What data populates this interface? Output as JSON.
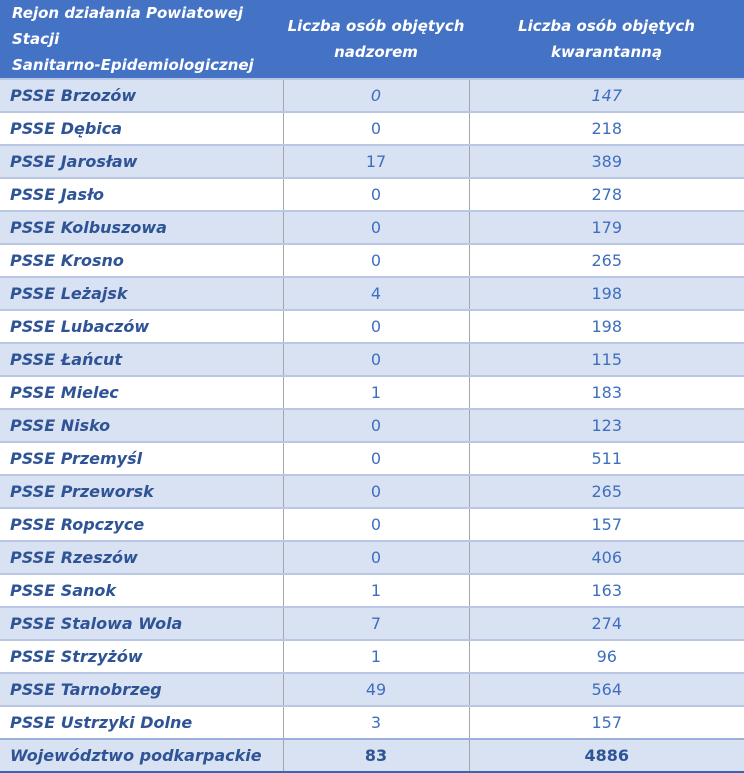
{
  "table": {
    "header": {
      "col1": {
        "line1": "Rejon działania Powiatowej Stacji",
        "line2": "Sanitarno-Epidemiologicznej"
      },
      "col2": {
        "line1": "Liczba osób objętych",
        "line2": "nadzorem"
      },
      "col3": {
        "line1": "Liczba osób objętych",
        "line2": "kwarantanną"
      }
    },
    "rows": [
      {
        "region": "PSSE Brzozów",
        "supervision": "0",
        "quarantine": "147",
        "italic_values": true
      },
      {
        "region": "PSSE Dębica",
        "supervision": "0",
        "quarantine": "218"
      },
      {
        "region": "PSSE Jarosław",
        "supervision": "17",
        "quarantine": "389"
      },
      {
        "region": "PSSE Jasło",
        "supervision": "0",
        "quarantine": "278"
      },
      {
        "region": "PSSE Kolbuszowa",
        "supervision": "0",
        "quarantine": "179"
      },
      {
        "region": "PSSE Krosno",
        "supervision": "0",
        "quarantine": "265"
      },
      {
        "region": "PSSE Leżajsk",
        "supervision": "4",
        "quarantine": "198"
      },
      {
        "region": "PSSE Lubaczów",
        "supervision": "0",
        "quarantine": "198"
      },
      {
        "region": "PSSE Łańcut",
        "supervision": "0",
        "quarantine": "115"
      },
      {
        "region": "PSSE Mielec",
        "supervision": "1",
        "quarantine": "183"
      },
      {
        "region": "PSSE Nisko",
        "supervision": "0",
        "quarantine": "123"
      },
      {
        "region": "PSSE Przemyśl",
        "supervision": "0",
        "quarantine": "511"
      },
      {
        "region": "PSSE Przeworsk",
        "supervision": "0",
        "quarantine": "265"
      },
      {
        "region": "PSSE Ropczyce",
        "supervision": "0",
        "quarantine": "157"
      },
      {
        "region": "PSSE Rzeszów",
        "supervision": "0",
        "quarantine": "406"
      },
      {
        "region": "PSSE Sanok",
        "supervision": "1",
        "quarantine": "163"
      },
      {
        "region": "PSSE Stalowa Wola",
        "supervision": "7",
        "quarantine": "274"
      },
      {
        "region": "PSSE Strzyżów",
        "supervision": "1",
        "quarantine": "96"
      },
      {
        "region": "PSSE Tarnobrzeg",
        "supervision": "49",
        "quarantine": "564"
      },
      {
        "region": "PSSE Ustrzyki Dolne",
        "supervision": "3",
        "quarantine": "157"
      }
    ],
    "footer": {
      "region": "Województwo podkarpackie",
      "supervision": "83",
      "quarantine": "4886"
    }
  },
  "colors": {
    "header_bg": "#4472C4",
    "header_text": "#FFFFFF",
    "stripe_bg": "#D9E2F3",
    "row_bg": "#FFFFFF",
    "label_text": "#2F5496",
    "value_text": "#3E6FBF",
    "row_border": "#B9C7E5",
    "footer_top_border": "#9AB0DA",
    "column_divider": "#A6A6A6",
    "bottom_border": "#3C64AE"
  }
}
